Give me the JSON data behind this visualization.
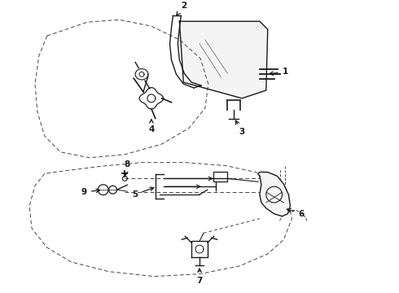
{
  "bg_color": "#ffffff",
  "line_color": "#1a1a1a",
  "dashed_color": "#444444",
  "fig_width": 4.9,
  "fig_height": 3.6,
  "dpi": 100,
  "top_section": {
    "door_outline": {
      "x": [
        0.55,
        0.45,
        0.4,
        0.42,
        0.5,
        0.7,
        1.05,
        1.5,
        1.95,
        2.3,
        2.5,
        2.55,
        2.45,
        2.2,
        1.85,
        1.45,
        1.05,
        0.7,
        0.55
      ],
      "y": [
        3.2,
        2.95,
        2.6,
        2.25,
        1.95,
        1.75,
        1.68,
        1.72,
        1.85,
        2.05,
        2.3,
        2.6,
        2.9,
        3.15,
        3.3,
        3.38,
        3.35,
        3.25,
        3.2
      ]
    }
  },
  "bottom_section": {
    "door_outline": {
      "x": [
        0.55,
        0.42,
        0.35,
        0.38,
        0.55,
        0.85,
        1.3,
        1.85,
        2.4,
        2.9,
        3.25,
        3.45,
        3.55,
        3.5,
        3.35,
        3.1,
        2.75,
        2.25,
        1.7,
        1.2,
        0.82,
        0.6,
        0.55
      ],
      "y": [
        1.5,
        1.35,
        1.1,
        0.82,
        0.58,
        0.4,
        0.28,
        0.22,
        0.25,
        0.35,
        0.5,
        0.68,
        0.92,
        1.18,
        1.38,
        1.52,
        1.6,
        1.65,
        1.65,
        1.6,
        1.55,
        1.52,
        1.5
      ]
    }
  }
}
